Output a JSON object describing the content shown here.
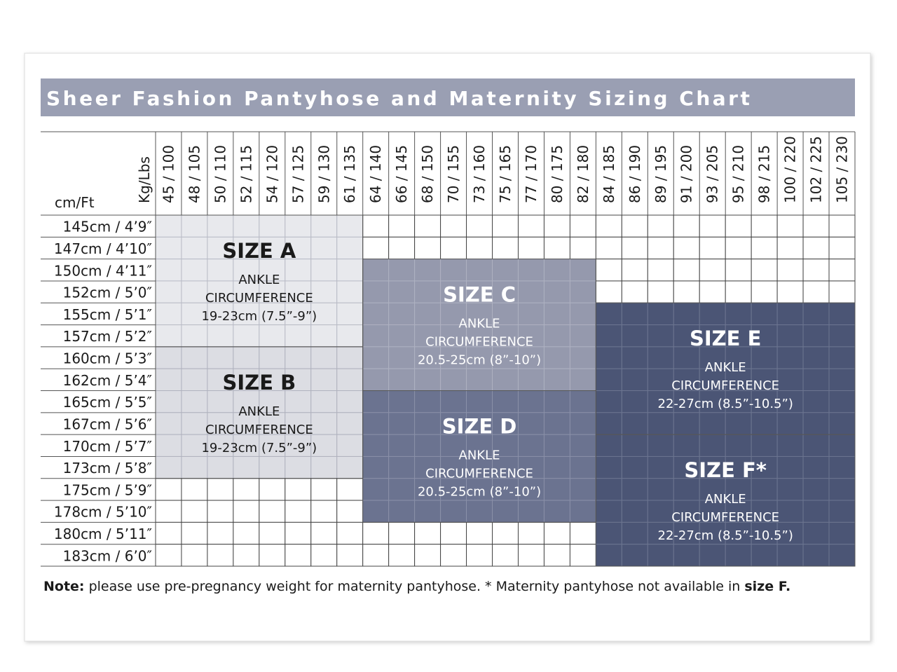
{
  "header": {
    "title": "Sheer Fashion Pantyhose and Maternity Sizing Chart"
  },
  "table": {
    "weight_axis_label": "Kg/Lbs",
    "height_axis_label": "cm/Ft",
    "weights": [
      "45 / 100",
      "48 / 105",
      "50 / 110",
      "52 / 115",
      "54 / 120",
      "57 / 125",
      "59 / 130",
      "61 / 135",
      "64 / 140",
      "66 / 145",
      "68 / 150",
      "70 / 155",
      "73 / 160",
      "75 / 165",
      "77 / 170",
      "80 / 175",
      "82 / 180",
      "84 / 185",
      "86 / 190",
      "89 / 195",
      "91 / 200",
      "93 / 205",
      "95 / 210",
      "98 / 215",
      "100 / 220",
      "102 / 225",
      "105 / 230"
    ],
    "heights": [
      "145cm / 4’9″",
      "147cm / 4’10″",
      "150cm / 4’11″",
      "152cm / 5’0″",
      "155cm / 5’1″",
      "157cm / 5’2″",
      "160cm / 5’3″",
      "162cm / 5’4″",
      "165cm / 5’5″",
      "167cm / 5’6″",
      "170cm / 5’7″",
      "173cm / 5’8″",
      "175cm / 5’9″",
      "178cm / 5’10″",
      "180cm / 5’11″",
      "183cm / 6’0″"
    ]
  },
  "sizes": [
    {
      "name": "SIZE A",
      "line1": "ANKLE",
      "line2": "CIRCUMFERENCE",
      "line3": "19-23cm (7.5”-9”)"
    },
    {
      "name": "SIZE B",
      "line1": "ANKLE",
      "line2": "CIRCUMFERENCE",
      "line3": "19-23cm (7.5”-9”)"
    },
    {
      "name": "SIZE C",
      "line1": "ANKLE",
      "line2": "CIRCUMFERENCE",
      "line3": "20.5-25cm (8”-10”)"
    },
    {
      "name": "SIZE D",
      "line1": "ANKLE",
      "line2": "CIRCUMFERENCE",
      "line3": "20.5-25cm (8”-10”)"
    },
    {
      "name": "SIZE E",
      "line1": "ANKLE",
      "line2": "CIRCUMFERENCE",
      "line3": "22-27cm (8.5”-10.5”)"
    },
    {
      "name": "SIZE F*",
      "line1": "ANKLE",
      "line2": "CIRCUMFERENCE",
      "line3": "22-27cm (8.5”-10.5”)"
    }
  ],
  "note": {
    "label": "Note:",
    "text": " please use pre-pregnancy weight for maternity pantyhose. * Maternity pantyhose not available in ",
    "emphasis": "size F",
    "end": "."
  }
}
